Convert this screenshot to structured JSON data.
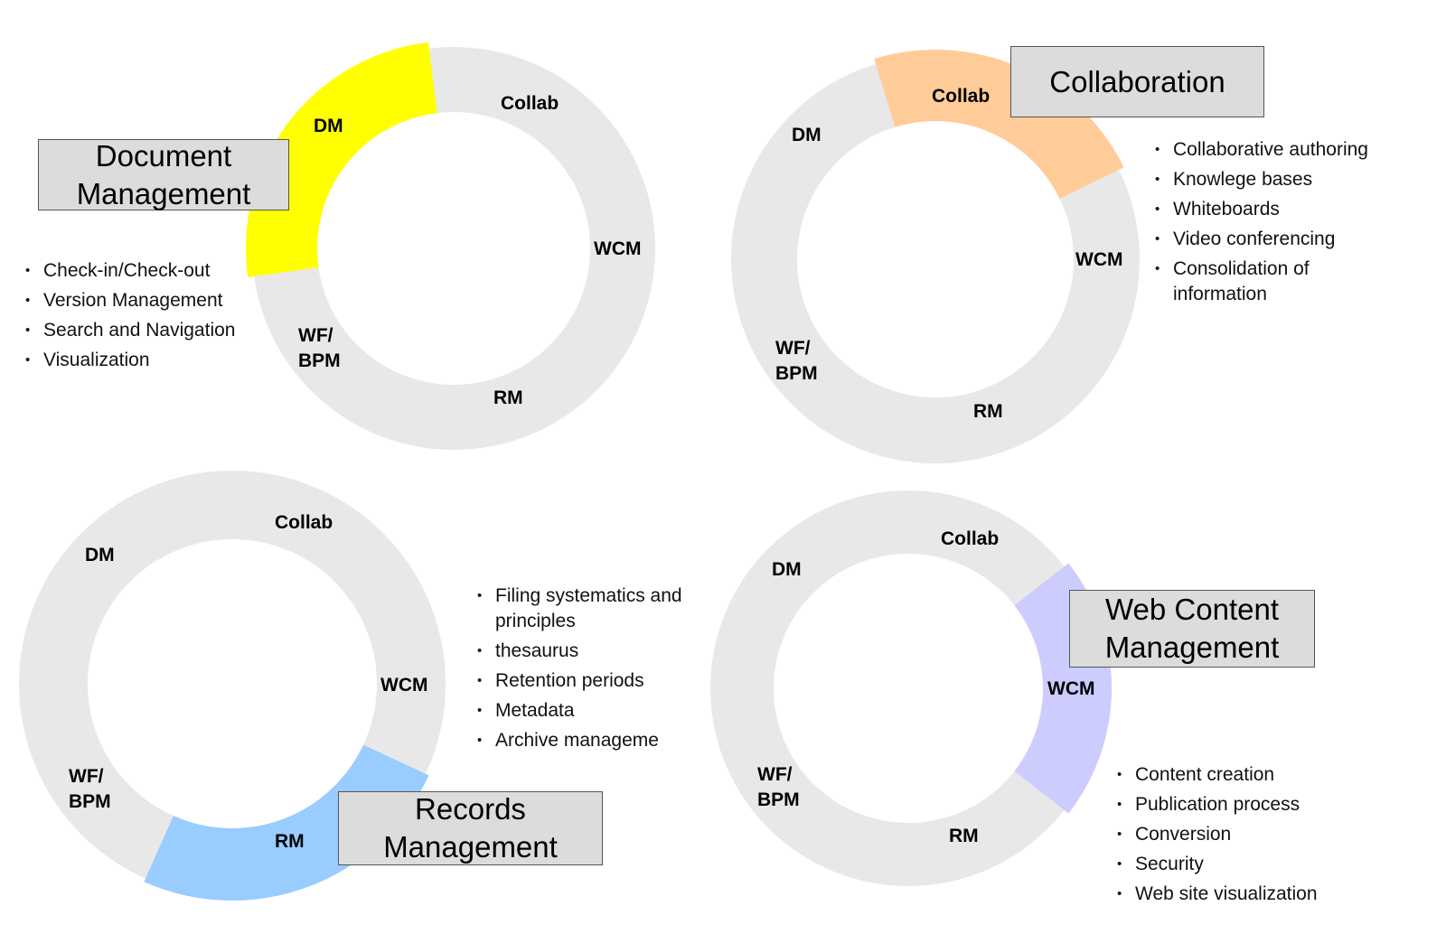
{
  "ring_labels": {
    "dm": "DM",
    "collab": "Collab",
    "wcm": "WCM",
    "wf": "WF/",
    "bpm": "BPM",
    "rm": "RM"
  },
  "quadrants": [
    {
      "id": "dm",
      "title_lines": [
        "Document",
        "Management"
      ],
      "highlight": "DM",
      "color": "#ffff00",
      "bullets": [
        "Check-in/Check-out",
        "Version Management",
        "Search and Navigation",
        "Visualization"
      ]
    },
    {
      "id": "collab",
      "title_lines": [
        "Collaboration"
      ],
      "highlight": "Collab",
      "color": "#ffcc99",
      "bullets": [
        "Collaborative authoring",
        "Knowlege bases",
        "Whiteboards",
        "Video conferencing",
        "Consolidation of information"
      ]
    },
    {
      "id": "rm",
      "title_lines": [
        "Records",
        "Management"
      ],
      "highlight": "RM",
      "color": "#99ccff",
      "bullets": [
        "Filing systematics and principles",
        "thesaurus",
        "Retention periods",
        "Metadata",
        "Archive manageme"
      ]
    },
    {
      "id": "wcm",
      "title_lines": [
        "Web Content",
        "Management"
      ],
      "highlight": "WCM",
      "color": "#ccccff",
      "bullets": [
        "Content creation",
        "Publication process",
        "Conversion",
        "Security",
        "Web site visualization"
      ]
    }
  ],
  "ring_color": "#e8e8e8"
}
